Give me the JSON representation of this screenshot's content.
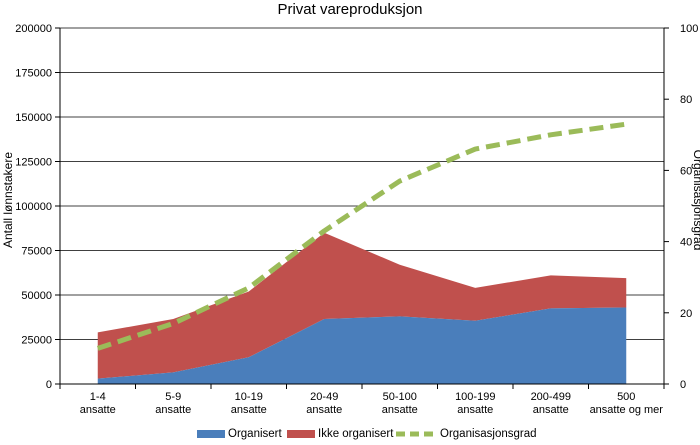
{
  "chart_data": {
    "type": "area",
    "title": "Privat vareproduksjon",
    "ylabel": "Antall lønnstakere",
    "y2label": "Organisasjonsgrad",
    "categories": [
      "1-4 ansatte",
      "5-9 ansatte",
      "10-19 ansatte",
      "20-49 ansatte",
      "50-100 ansatte",
      "100-199 ansatte",
      "200-499 ansatte",
      "500 ansatte og mer"
    ],
    "ylim": [
      0,
      200000
    ],
    "y2lim": [
      0,
      100
    ],
    "yticks": [
      "0",
      "25000",
      "50000",
      "75000",
      "100000",
      "125000",
      "150000",
      "175000",
      "200000"
    ],
    "y2ticks": [
      "0",
      "20",
      "40",
      "60",
      "80",
      "100"
    ],
    "series": [
      {
        "name": "Organisert",
        "axis": "left",
        "kind": "area",
        "color": "#4a7ebb",
        "values": [
          3000,
          6500,
          15000,
          36500,
          38000,
          35500,
          42500,
          43000
        ]
      },
      {
        "name": "Ikke organisert",
        "axis": "left",
        "kind": "area",
        "color": "#c0504d",
        "values": [
          26000,
          30000,
          37000,
          48500,
          29000,
          18500,
          18500,
          16500
        ]
      },
      {
        "name": "Organisasjonsgrad",
        "axis": "right",
        "kind": "line",
        "color": "#9bbb59",
        "values": [
          10,
          17,
          27,
          43,
          57,
          66,
          70,
          73
        ]
      }
    ],
    "legend_position": "bottom"
  }
}
